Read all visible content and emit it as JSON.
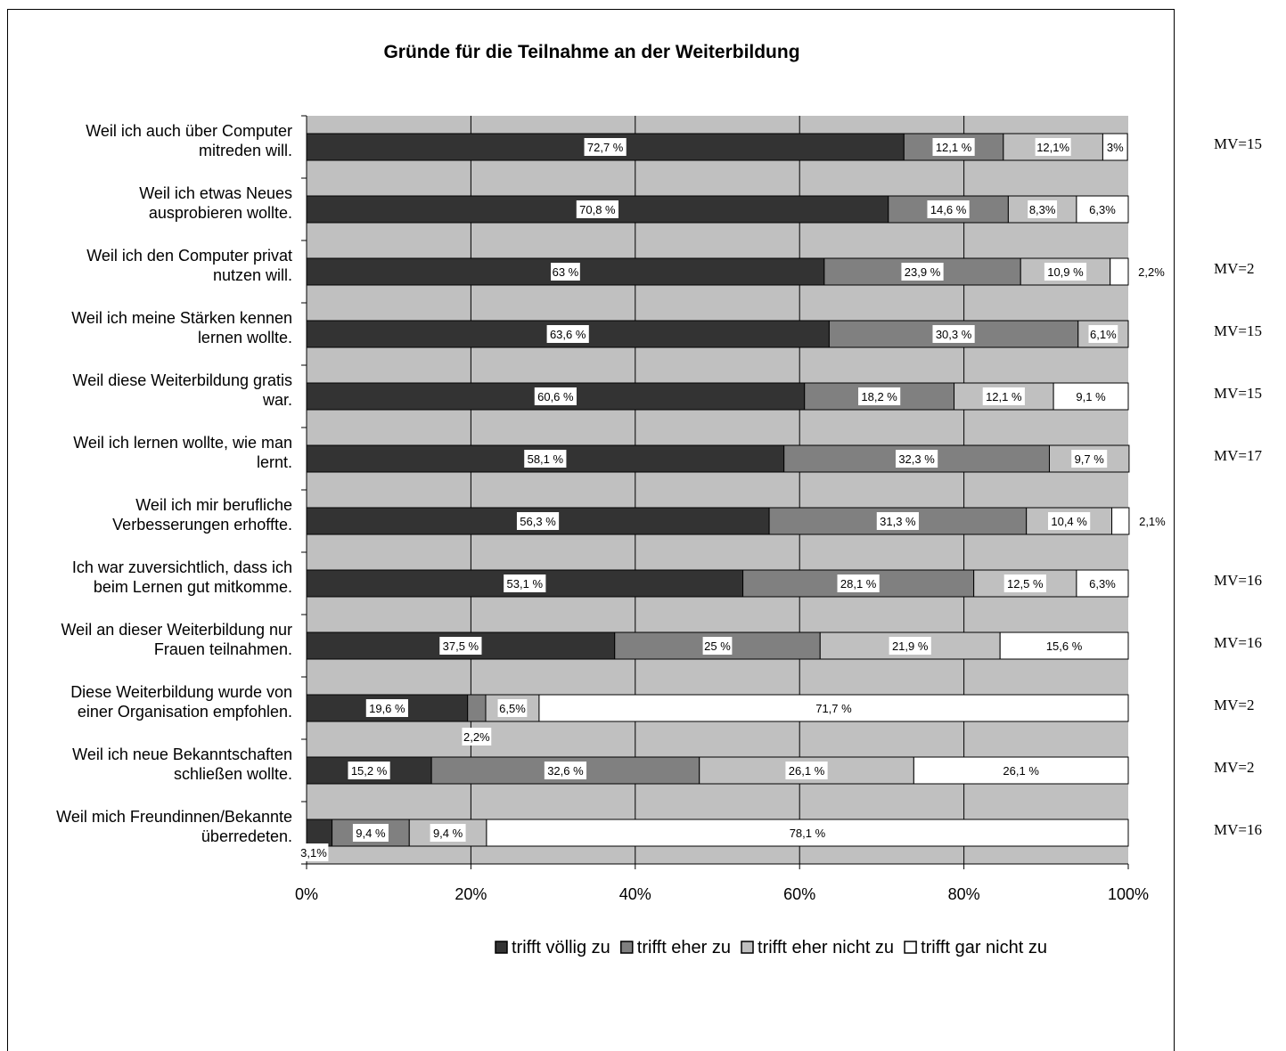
{
  "chart_data": {
    "type": "bar",
    "orientation": "horizontal",
    "stacked": true,
    "title": "Gründe für die Teilnahme an der Weiterbildung",
    "xlim": [
      0,
      100
    ],
    "x_ticks": [
      "0%",
      "20%",
      "40%",
      "60%",
      "80%",
      "100%"
    ],
    "grid": true,
    "legend_position": "bottom-right",
    "categories": [
      [
        "Weil ich auch über Computer",
        "mitreden will."
      ],
      [
        "Weil ich etwas Neues",
        "ausprobieren wollte."
      ],
      [
        "Weil ich den Computer privat",
        "nutzen will."
      ],
      [
        "Weil ich meine Stärken kennen",
        "lernen wollte."
      ],
      [
        "Weil diese Weiterbildung gratis",
        "war."
      ],
      [
        "Weil ich lernen wollte, wie man",
        "lernt."
      ],
      [
        "Weil ich mir berufliche",
        "Verbesserungen erhoffte."
      ],
      [
        "Ich war zuversichtlich, dass ich",
        "beim Lernen gut mitkomme."
      ],
      [
        "Weil an dieser Weiterbildung nur",
        "Frauen teilnahmen."
      ],
      [
        "Diese Weiterbildung wurde von",
        "einer Organisation empfohlen."
      ],
      [
        "Weil ich neue Bekanntschaften",
        "schließen wollte."
      ],
      [
        "Weil mich Freundinnen/Bekannte",
        "überredeten."
      ]
    ],
    "series": [
      {
        "name": "trifft völlig zu",
        "color": "#333333",
        "values": [
          72.7,
          70.8,
          63,
          63.6,
          60.6,
          58.1,
          56.3,
          53.1,
          37.5,
          19.6,
          15.2,
          3.1
        ],
        "labels": [
          "72,7 %",
          "70,8 %",
          "63 %",
          "63,6 %",
          "60,6 %",
          "58,1 %",
          "56,3 %",
          "53,1 %",
          "37,5 %",
          "19,6 %",
          "15,2 %",
          "3,1%"
        ]
      },
      {
        "name": "trifft eher zu",
        "color": "#808080",
        "values": [
          12.1,
          14.6,
          23.9,
          30.3,
          18.2,
          32.3,
          31.3,
          28.1,
          25,
          2.2,
          32.6,
          9.4
        ],
        "labels": [
          "12,1 %",
          "14,6 %",
          "23,9 %",
          "30,3 %",
          "18,2 %",
          "32,3 %",
          "31,3 %",
          "28,1 %",
          "25 %",
          "2,2%",
          "32,6 %",
          "9,4 %"
        ]
      },
      {
        "name": "trifft eher nicht zu",
        "color": "#c0c0c0",
        "values": [
          12.1,
          8.3,
          10.9,
          6.1,
          12.1,
          9.7,
          10.4,
          12.5,
          21.9,
          6.5,
          26.1,
          9.4
        ],
        "labels": [
          "12,1%",
          "8,3%",
          "10,9 %",
          "6,1%",
          "12,1 %",
          "9,7 %",
          "10,4 %",
          "12,5 %",
          "21,9 %",
          "6,5%",
          "26,1 %",
          "9,4 %"
        ]
      },
      {
        "name": "trifft gar nicht zu",
        "color": "#ffffff",
        "values": [
          3,
          6.3,
          2.2,
          0,
          9.1,
          0,
          2.1,
          6.3,
          15.6,
          71.7,
          26.1,
          78.1
        ],
        "labels": [
          "3%",
          "6,3%",
          "2,2%",
          "",
          "9,1 %",
          "",
          "2,1%",
          "6,3%",
          "15,6 %",
          "71,7 %",
          "26,1 %",
          "78,1 %"
        ]
      }
    ],
    "annotations": [
      "MV=15",
      "",
      "MV=2",
      "MV=15",
      "MV=15",
      "MV=17",
      "",
      "MV=16",
      "MV=16",
      "MV=2",
      "MV=2",
      "MV=16"
    ]
  }
}
